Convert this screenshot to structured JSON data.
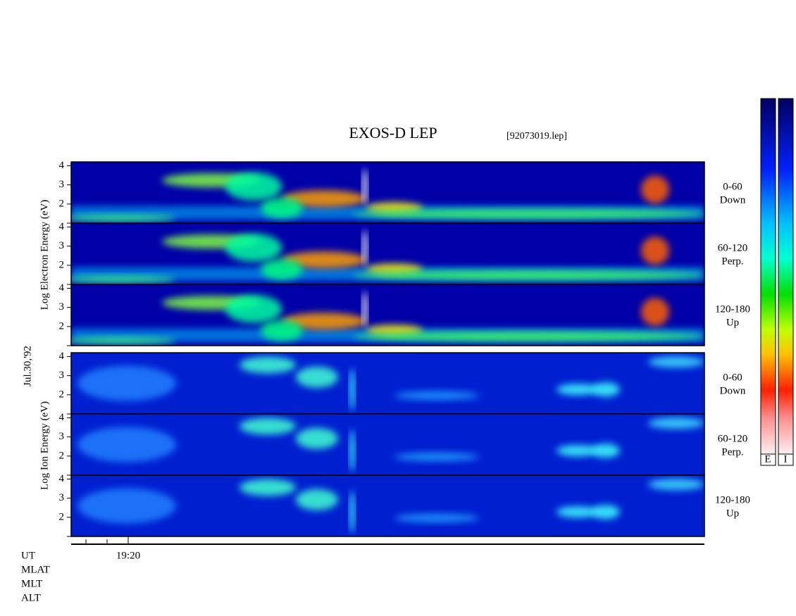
{
  "header": {
    "title": "EXOS-D LEP",
    "file": "[92073019.lep]"
  },
  "y_labels": {
    "electron": "Log  Electron  Energy (eV)",
    "ion": "Log  Ion  Energy (eV)",
    "date": "Jul.30,'92"
  },
  "chart_data": [
    {
      "type": "spectrogram",
      "label": [
        "0-60",
        "Down"
      ],
      "ylim": [
        1,
        4.2
      ],
      "yticks": [
        2,
        3,
        4
      ]
    },
    {
      "type": "spectrogram",
      "label": [
        "60-120",
        "Perp."
      ],
      "ylim": [
        1,
        4.2
      ],
      "yticks": [
        2,
        3,
        4
      ]
    },
    {
      "type": "spectrogram",
      "label": [
        "120-180",
        "Up"
      ],
      "ylim": [
        1,
        4.2
      ],
      "yticks": [
        2,
        3,
        4
      ]
    },
    {
      "type": "spectrogram",
      "label": [
        "0-60",
        "Down"
      ],
      "ylim": [
        1,
        4.2
      ],
      "yticks": [
        2,
        3,
        4
      ]
    },
    {
      "type": "spectrogram",
      "label": [
        "60-120",
        "Perp."
      ],
      "ylim": [
        1,
        4.2
      ],
      "yticks": [
        2,
        3,
        4
      ]
    },
    {
      "type": "spectrogram",
      "label": [
        "120-180",
        "Up"
      ],
      "ylim": [
        1,
        4.2
      ],
      "yticks": [
        2,
        3,
        4
      ]
    }
  ],
  "x_axis": {
    "rows": [
      "UT",
      "MLAT",
      "MLT",
      "ALT"
    ],
    "tick": "19:20"
  },
  "colorbars": [
    "E",
    "I"
  ]
}
